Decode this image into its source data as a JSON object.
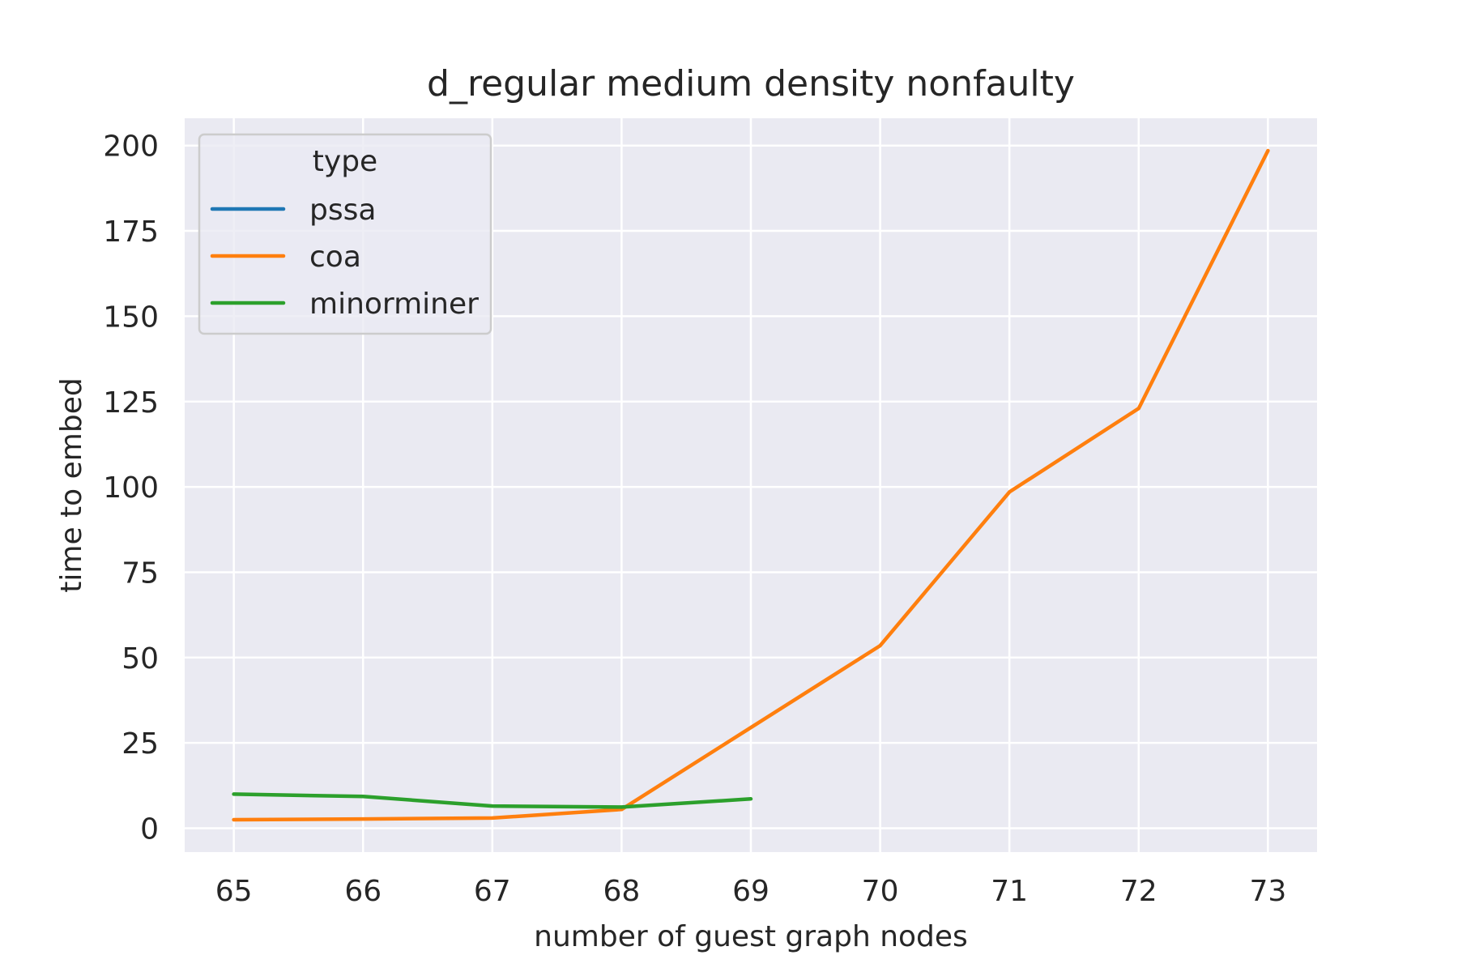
{
  "chart_data": {
    "type": "line",
    "title": "d_regular medium density nonfaulty",
    "xlabel": "number of guest graph nodes",
    "ylabel": "time to embed",
    "x": [
      65,
      66,
      67,
      68,
      69,
      70,
      71,
      72,
      73
    ],
    "xticks": [
      "65",
      "66",
      "67",
      "68",
      "69",
      "70",
      "71",
      "72",
      "73"
    ],
    "yticks": [
      "0",
      "25",
      "50",
      "75",
      "100",
      "125",
      "150",
      "175",
      "200"
    ],
    "xlim": [
      64.62,
      73.38
    ],
    "ylim": [
      -7,
      208
    ],
    "grid": true,
    "legend": {
      "title": "type",
      "position": "top-left"
    },
    "series": [
      {
        "name": "pssa",
        "color": "#1f77b4",
        "x": [],
        "y": []
      },
      {
        "name": "coa",
        "color": "#ff7f0e",
        "x": [
          65,
          66,
          67,
          68,
          69,
          70,
          71,
          72,
          73
        ],
        "y": [
          2.5,
          2.7,
          3.0,
          5.5,
          29.5,
          53.5,
          98.5,
          123.0,
          198.5
        ]
      },
      {
        "name": "minorminer",
        "color": "#2ca02c",
        "x": [
          65,
          66,
          67,
          68,
          69
        ],
        "y": [
          10.0,
          9.3,
          6.5,
          6.2,
          8.6
        ]
      }
    ]
  }
}
